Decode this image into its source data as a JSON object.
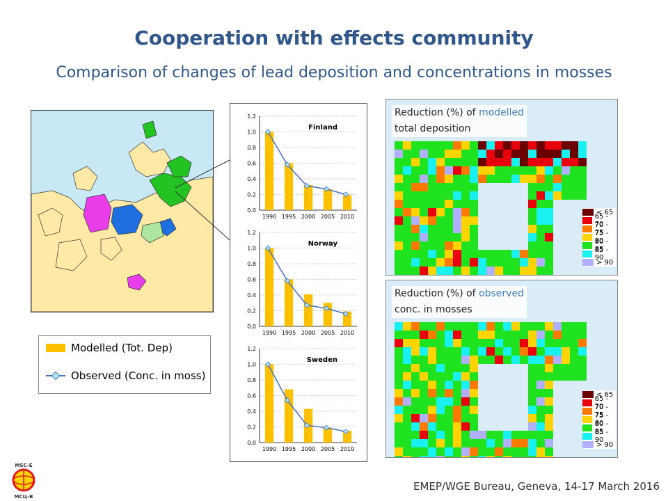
{
  "header": {
    "title": "Cooperation with effects community",
    "subtitle": "Comparison of changes of lead deposition and concentrations in mosses"
  },
  "legend": {
    "modelled": "Modelled (Tot. Dep)",
    "observed": "Observed (Conc. in moss)"
  },
  "maps": [
    {
      "caption_prefix": "Reduction (%) of ",
      "caption_highlight": "modelled",
      "caption_rest": "total deposition"
    },
    {
      "caption_prefix": "Reduction (%) of ",
      "caption_highlight": "observed",
      "caption_rest": "conc. in mosses"
    }
  ],
  "scale_labels": [
    "< 65",
    "65 - 70",
    "70 - 75",
    "75 - 80",
    "80 - 85",
    "85 - 90",
    "> 90"
  ],
  "scale_colors": [
    "#6b0000",
    "#e8000a",
    "#ff7a00",
    "#ffd400",
    "#1fe31f",
    "#19f0f0",
    "#b0b0ff"
  ],
  "footer": "EMEP/WGE Bureau, Geneva, 14-17 March 2016",
  "logo": {
    "top_text": "MSC-E",
    "bottom_text": "МСЦ-В"
  },
  "colors": {
    "title": "#31578a",
    "bar": "#ffc000",
    "line": "#4472c4"
  },
  "chart_data": [
    {
      "type": "bar",
      "title": "Finland",
      "categories": [
        "1990",
        "1995",
        "2000",
        "2005",
        "2010"
      ],
      "ylim": [
        0,
        1.2
      ],
      "yticks": [
        "0.0",
        "0.2",
        "0.4",
        "0.6",
        "0.8",
        "1.0",
        "1.2"
      ],
      "series": [
        {
          "name": "Modelled (Tot. Dep)",
          "kind": "bar",
          "values": [
            1.0,
            0.6,
            0.32,
            0.27,
            0.19
          ]
        },
        {
          "name": "Observed (Conc. in moss)",
          "kind": "line",
          "values": [
            1.0,
            0.58,
            0.31,
            0.27,
            0.2
          ]
        }
      ]
    },
    {
      "type": "bar",
      "title": "Norway",
      "categories": [
        "1990",
        "1995",
        "2000",
        "2005",
        "2010"
      ],
      "ylim": [
        0,
        1.2
      ],
      "yticks": [
        "0.0",
        "0.2",
        "0.4",
        "0.6",
        "0.8",
        "1.0",
        "1.2"
      ],
      "series": [
        {
          "name": "Modelled (Tot. Dep)",
          "kind": "bar",
          "values": [
            1.0,
            0.6,
            0.41,
            0.3,
            0.19
          ]
        },
        {
          "name": "Observed (Conc. in moss)",
          "kind": "line",
          "values": [
            1.0,
            0.58,
            0.27,
            0.23,
            0.16
          ]
        }
      ]
    },
    {
      "type": "bar",
      "title": "Sweden",
      "categories": [
        "1990",
        "1995",
        "2000",
        "2005",
        "2010"
      ],
      "ylim": [
        0,
        1.2
      ],
      "yticks": [
        "0.0",
        "0.2",
        "0.4",
        "0.6",
        "0.8",
        "1.0",
        "1.2"
      ],
      "series": [
        {
          "name": "Modelled (Tot. Dep)",
          "kind": "bar",
          "values": [
            1.0,
            0.68,
            0.43,
            0.19,
            0.15
          ]
        },
        {
          "name": "Observed (Conc. in moss)",
          "kind": "line",
          "values": [
            1.0,
            0.54,
            0.22,
            0.19,
            0.14
          ]
        }
      ]
    }
  ]
}
